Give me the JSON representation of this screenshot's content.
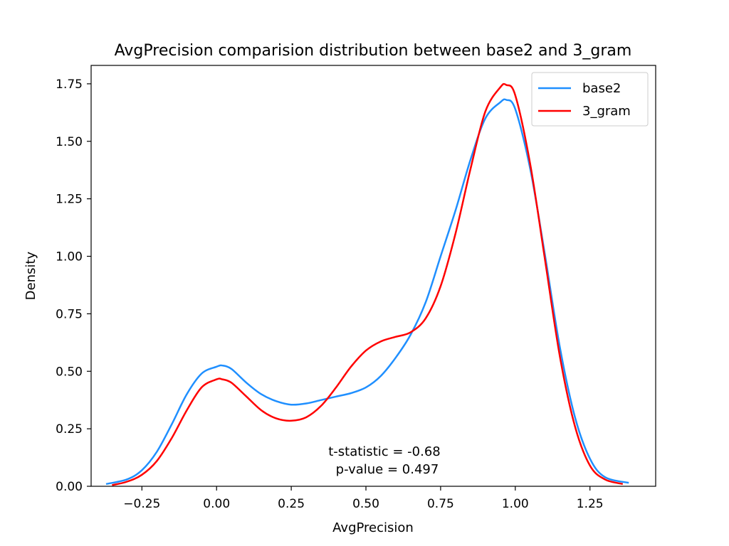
{
  "chart_data": {
    "type": "line",
    "title": "AvgPrecision comparision distribution between base2 and 3_gram",
    "xlabel": "AvgPrecision",
    "ylabel": "Density",
    "xlim": [
      -0.42,
      1.47
    ],
    "ylim": [
      0,
      1.83
    ],
    "xticks": [
      -0.25,
      0.0,
      0.25,
      0.5,
      0.75,
      1.0,
      1.25
    ],
    "xtick_labels": [
      "−0.25",
      "0.00",
      "0.25",
      "0.50",
      "0.75",
      "1.00",
      "1.25"
    ],
    "yticks": [
      0.0,
      0.25,
      0.5,
      0.75,
      1.0,
      1.25,
      1.5,
      1.75
    ],
    "ytick_labels": [
      "0.00",
      "0.25",
      "0.50",
      "0.75",
      "1.00",
      "1.25",
      "1.50",
      "1.75"
    ],
    "grid": false,
    "legend_position": "top-right",
    "annotation": [
      "t-statistic = -0.68",
      "p-value = 0.497"
    ],
    "series": [
      {
        "name": "base2",
        "color": "#1f8fff",
        "x": [
          -0.37,
          -0.3,
          -0.25,
          -0.2,
          -0.15,
          -0.1,
          -0.05,
          0.0,
          0.02,
          0.05,
          0.1,
          0.15,
          0.2,
          0.25,
          0.3,
          0.35,
          0.4,
          0.45,
          0.5,
          0.55,
          0.6,
          0.65,
          0.7,
          0.75,
          0.8,
          0.85,
          0.9,
          0.95,
          0.97,
          1.0,
          1.05,
          1.1,
          1.15,
          1.2,
          1.25,
          1.3,
          1.38
        ],
        "y": [
          0.01,
          0.03,
          0.07,
          0.15,
          0.27,
          0.4,
          0.49,
          0.52,
          0.525,
          0.51,
          0.45,
          0.4,
          0.37,
          0.355,
          0.36,
          0.375,
          0.39,
          0.405,
          0.43,
          0.48,
          0.56,
          0.66,
          0.8,
          1.0,
          1.2,
          1.42,
          1.6,
          1.67,
          1.68,
          1.64,
          1.38,
          1.0,
          0.6,
          0.3,
          0.12,
          0.04,
          0.015
        ]
      },
      {
        "name": "3_gram",
        "color": "#ff0000",
        "x": [
          -0.35,
          -0.3,
          -0.25,
          -0.2,
          -0.15,
          -0.1,
          -0.05,
          0.0,
          0.02,
          0.05,
          0.1,
          0.15,
          0.2,
          0.25,
          0.3,
          0.35,
          0.4,
          0.45,
          0.5,
          0.55,
          0.6,
          0.65,
          0.7,
          0.75,
          0.8,
          0.85,
          0.9,
          0.95,
          0.97,
          1.0,
          1.05,
          1.1,
          1.15,
          1.2,
          1.25,
          1.3,
          1.36
        ],
        "y": [
          0.005,
          0.02,
          0.05,
          0.11,
          0.21,
          0.33,
          0.43,
          0.465,
          0.465,
          0.45,
          0.39,
          0.33,
          0.295,
          0.285,
          0.3,
          0.35,
          0.43,
          0.52,
          0.59,
          0.63,
          0.65,
          0.67,
          0.73,
          0.87,
          1.1,
          1.38,
          1.63,
          1.735,
          1.745,
          1.7,
          1.4,
          0.98,
          0.56,
          0.26,
          0.09,
          0.03,
          0.01
        ]
      }
    ]
  }
}
